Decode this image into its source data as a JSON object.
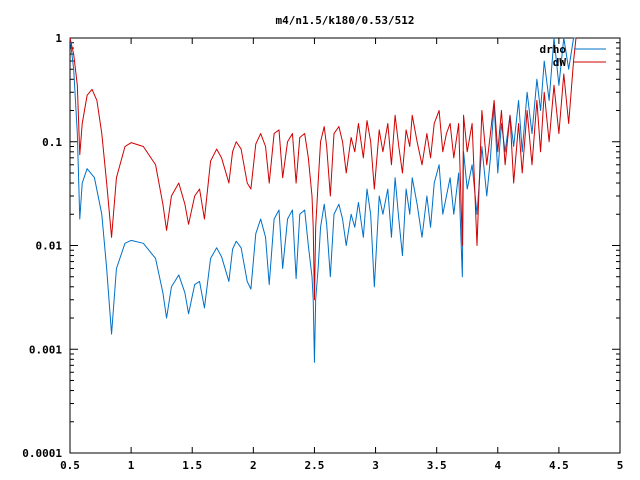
{
  "chart_data": {
    "type": "line",
    "title": "m4/n1.5/k180/0.53/512",
    "xlim": [
      0.5,
      5
    ],
    "ylim": [
      0.0001,
      1
    ],
    "yscale": "log",
    "xticks": [
      0.5,
      1,
      1.5,
      2,
      2.5,
      3,
      3.5,
      4,
      4.5,
      5
    ],
    "xtick_labels": [
      "0.5",
      "1",
      "1.5",
      "2",
      "2.5",
      "3",
      "3.5",
      "4",
      "4.5",
      "5"
    ],
    "yticks": [
      0.0001,
      0.001,
      0.01,
      0.1,
      1
    ],
    "ytick_labels": [
      "0.0001",
      "0.001",
      "0.01",
      "0.1",
      "1"
    ],
    "grid": false,
    "legend": "top-right",
    "series": [
      {
        "name": "drho",
        "color": "#0070c8",
        "points": [
          [
            0.5,
            1.0
          ],
          [
            0.53,
            0.5
          ],
          [
            0.56,
            0.12
          ],
          [
            0.58,
            0.018
          ],
          [
            0.6,
            0.04
          ],
          [
            0.64,
            0.055
          ],
          [
            0.7,
            0.045
          ],
          [
            0.76,
            0.02
          ],
          [
            0.8,
            0.006
          ],
          [
            0.84,
            0.0014
          ],
          [
            0.88,
            0.006
          ],
          [
            0.95,
            0.0105
          ],
          [
            1.0,
            0.0112
          ],
          [
            1.1,
            0.0105
          ],
          [
            1.2,
            0.0075
          ],
          [
            1.26,
            0.0035
          ],
          [
            1.29,
            0.002
          ],
          [
            1.33,
            0.004
          ],
          [
            1.39,
            0.0052
          ],
          [
            1.44,
            0.0035
          ],
          [
            1.47,
            0.0022
          ],
          [
            1.52,
            0.0042
          ],
          [
            1.56,
            0.0045
          ],
          [
            1.6,
            0.0025
          ],
          [
            1.65,
            0.0075
          ],
          [
            1.7,
            0.0095
          ],
          [
            1.74,
            0.0078
          ],
          [
            1.8,
            0.0045
          ],
          [
            1.83,
            0.0092
          ],
          [
            1.86,
            0.011
          ],
          [
            1.9,
            0.0095
          ],
          [
            1.95,
            0.0045
          ],
          [
            1.98,
            0.0038
          ],
          [
            2.02,
            0.013
          ],
          [
            2.06,
            0.018
          ],
          [
            2.1,
            0.012
          ],
          [
            2.13,
            0.0042
          ],
          [
            2.17,
            0.018
          ],
          [
            2.21,
            0.022
          ],
          [
            2.24,
            0.006
          ],
          [
            2.28,
            0.018
          ],
          [
            2.32,
            0.022
          ],
          [
            2.35,
            0.0048
          ],
          [
            2.38,
            0.02
          ],
          [
            2.42,
            0.022
          ],
          [
            2.45,
            0.01
          ],
          [
            2.48,
            0.005
          ],
          [
            2.49,
            0.003
          ],
          [
            2.5,
            0.00075
          ],
          [
            2.51,
            0.003
          ],
          [
            2.53,
            0.006
          ],
          [
            2.55,
            0.015
          ],
          [
            2.58,
            0.025
          ],
          [
            2.6,
            0.016
          ],
          [
            2.63,
            0.005
          ],
          [
            2.66,
            0.02
          ],
          [
            2.7,
            0.025
          ],
          [
            2.73,
            0.018
          ],
          [
            2.76,
            0.01
          ],
          [
            2.8,
            0.02
          ],
          [
            2.83,
            0.015
          ],
          [
            2.86,
            0.026
          ],
          [
            2.9,
            0.012
          ],
          [
            2.93,
            0.035
          ],
          [
            2.96,
            0.02
          ],
          [
            2.99,
            0.004
          ],
          [
            3.03,
            0.03
          ],
          [
            3.06,
            0.02
          ],
          [
            3.1,
            0.035
          ],
          [
            3.13,
            0.012
          ],
          [
            3.16,
            0.045
          ],
          [
            3.19,
            0.018
          ],
          [
            3.22,
            0.008
          ],
          [
            3.25,
            0.035
          ],
          [
            3.28,
            0.02
          ],
          [
            3.3,
            0.045
          ],
          [
            3.34,
            0.025
          ],
          [
            3.38,
            0.012
          ],
          [
            3.42,
            0.03
          ],
          [
            3.45,
            0.015
          ],
          [
            3.48,
            0.04
          ],
          [
            3.52,
            0.06
          ],
          [
            3.55,
            0.02
          ],
          [
            3.58,
            0.03
          ],
          [
            3.61,
            0.045
          ],
          [
            3.64,
            0.02
          ],
          [
            3.68,
            0.05
          ],
          [
            3.71,
            0.005
          ],
          [
            3.72,
            0.08
          ],
          [
            3.75,
            0.035
          ],
          [
            3.79,
            0.06
          ],
          [
            3.83,
            0.02
          ],
          [
            3.87,
            0.09
          ],
          [
            3.91,
            0.03
          ],
          [
            3.94,
            0.07
          ],
          [
            3.97,
            0.23
          ],
          [
            4.0,
            0.05
          ],
          [
            4.03,
            0.15
          ],
          [
            4.06,
            0.08
          ],
          [
            4.1,
            0.18
          ],
          [
            4.13,
            0.09
          ],
          [
            4.17,
            0.25
          ],
          [
            4.2,
            0.08
          ],
          [
            4.24,
            0.3
          ],
          [
            4.28,
            0.12
          ],
          [
            4.32,
            0.4
          ],
          [
            4.35,
            0.2
          ],
          [
            4.38,
            0.6
          ],
          [
            4.42,
            0.25
          ],
          [
            4.46,
            1.0
          ],
          [
            4.5,
            0.35
          ],
          [
            4.54,
            1.0
          ],
          [
            4.58,
            0.5
          ],
          [
            4.62,
            1.0
          ],
          [
            4.64,
            1.0
          ]
        ]
      },
      {
        "name": "dW",
        "color": "#d00000",
        "points": [
          [
            0.5,
            1.0
          ],
          [
            0.53,
            0.7
          ],
          [
            0.56,
            0.35
          ],
          [
            0.58,
            0.075
          ],
          [
            0.6,
            0.15
          ],
          [
            0.64,
            0.28
          ],
          [
            0.68,
            0.32
          ],
          [
            0.72,
            0.25
          ],
          [
            0.76,
            0.12
          ],
          [
            0.8,
            0.04
          ],
          [
            0.84,
            0.012
          ],
          [
            0.88,
            0.045
          ],
          [
            0.95,
            0.09
          ],
          [
            1.0,
            0.098
          ],
          [
            1.1,
            0.09
          ],
          [
            1.2,
            0.06
          ],
          [
            1.26,
            0.025
          ],
          [
            1.29,
            0.014
          ],
          [
            1.33,
            0.03
          ],
          [
            1.39,
            0.04
          ],
          [
            1.44,
            0.025
          ],
          [
            1.47,
            0.016
          ],
          [
            1.52,
            0.03
          ],
          [
            1.56,
            0.035
          ],
          [
            1.6,
            0.018
          ],
          [
            1.65,
            0.065
          ],
          [
            1.7,
            0.085
          ],
          [
            1.74,
            0.07
          ],
          [
            1.8,
            0.04
          ],
          [
            1.83,
            0.08
          ],
          [
            1.86,
            0.1
          ],
          [
            1.9,
            0.085
          ],
          [
            1.95,
            0.04
          ],
          [
            1.98,
            0.035
          ],
          [
            2.02,
            0.095
          ],
          [
            2.06,
            0.12
          ],
          [
            2.1,
            0.09
          ],
          [
            2.13,
            0.04
          ],
          [
            2.17,
            0.12
          ],
          [
            2.21,
            0.13
          ],
          [
            2.24,
            0.045
          ],
          [
            2.28,
            0.1
          ],
          [
            2.32,
            0.12
          ],
          [
            2.35,
            0.04
          ],
          [
            2.38,
            0.11
          ],
          [
            2.42,
            0.12
          ],
          [
            2.45,
            0.07
          ],
          [
            2.48,
            0.03
          ],
          [
            2.49,
            0.015
          ],
          [
            2.5,
            0.003
          ],
          [
            2.51,
            0.015
          ],
          [
            2.53,
            0.04
          ],
          [
            2.55,
            0.1
          ],
          [
            2.58,
            0.14
          ],
          [
            2.6,
            0.09
          ],
          [
            2.63,
            0.03
          ],
          [
            2.66,
            0.12
          ],
          [
            2.7,
            0.14
          ],
          [
            2.73,
            0.1
          ],
          [
            2.76,
            0.05
          ],
          [
            2.8,
            0.11
          ],
          [
            2.83,
            0.08
          ],
          [
            2.86,
            0.15
          ],
          [
            2.9,
            0.07
          ],
          [
            2.93,
            0.16
          ],
          [
            2.96,
            0.1
          ],
          [
            2.99,
            0.035
          ],
          [
            3.03,
            0.13
          ],
          [
            3.06,
            0.08
          ],
          [
            3.1,
            0.15
          ],
          [
            3.13,
            0.06
          ],
          [
            3.16,
            0.18
          ],
          [
            3.19,
            0.09
          ],
          [
            3.22,
            0.05
          ],
          [
            3.25,
            0.13
          ],
          [
            3.28,
            0.09
          ],
          [
            3.3,
            0.18
          ],
          [
            3.34,
            0.1
          ],
          [
            3.38,
            0.06
          ],
          [
            3.42,
            0.12
          ],
          [
            3.45,
            0.07
          ],
          [
            3.48,
            0.15
          ],
          [
            3.52,
            0.2
          ],
          [
            3.55,
            0.08
          ],
          [
            3.58,
            0.12
          ],
          [
            3.61,
            0.15
          ],
          [
            3.64,
            0.07
          ],
          [
            3.68,
            0.15
          ],
          [
            3.71,
            0.01
          ],
          [
            3.72,
            0.18
          ],
          [
            3.75,
            0.08
          ],
          [
            3.79,
            0.15
          ],
          [
            3.83,
            0.01
          ],
          [
            3.87,
            0.2
          ],
          [
            3.91,
            0.06
          ],
          [
            3.94,
            0.12
          ],
          [
            3.97,
            0.25
          ],
          [
            4.0,
            0.08
          ],
          [
            4.03,
            0.2
          ],
          [
            4.06,
            0.06
          ],
          [
            4.1,
            0.18
          ],
          [
            4.13,
            0.04
          ],
          [
            4.17,
            0.15
          ],
          [
            4.2,
            0.05
          ],
          [
            4.24,
            0.2
          ],
          [
            4.28,
            0.06
          ],
          [
            4.32,
            0.25
          ],
          [
            4.35,
            0.08
          ],
          [
            4.38,
            0.3
          ],
          [
            4.42,
            0.1
          ],
          [
            4.46,
            0.35
          ],
          [
            4.5,
            0.12
          ],
          [
            4.54,
            0.45
          ],
          [
            4.58,
            0.15
          ],
          [
            4.62,
            0.6
          ],
          [
            4.64,
            1.0
          ]
        ]
      }
    ]
  }
}
